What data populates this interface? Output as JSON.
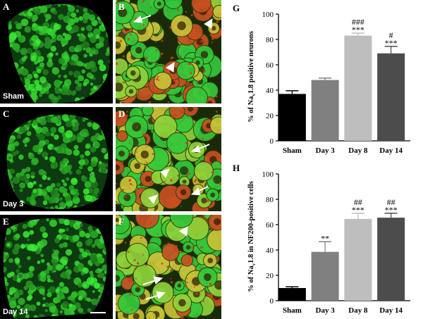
{
  "panels": {
    "A": {
      "label": "A",
      "condition": "Sham"
    },
    "B": {
      "label": "B"
    },
    "C": {
      "label": "C",
      "condition": "Day 3"
    },
    "D": {
      "label": "D"
    },
    "E": {
      "label": "E",
      "condition": "Day 14"
    },
    "F": {
      "label": "F"
    }
  },
  "colors": {
    "green_stain": "#34c83a",
    "red_stain": "#c85022",
    "yellow_overlap": "#c8c238",
    "bar_sham": "#000000",
    "bar_day3": "#808080",
    "bar_day8": "#bebebe",
    "bar_day14": "#4c4c4c"
  },
  "chart_data": [
    {
      "panel_label": "G",
      "type": "bar",
      "categories": [
        "Sham",
        "Day 3",
        "Day 8",
        "Day 14"
      ],
      "values": [
        37,
        48,
        83,
        69
      ],
      "errors": [
        2.5,
        1.5,
        2,
        5.5
      ],
      "annotations": [
        [
          "",
          ""
        ],
        [
          "",
          ""
        ],
        [
          "###",
          "***"
        ],
        [
          "#",
          "***"
        ]
      ],
      "ylabel": "% of Nav1.8 positive neurons",
      "ylabel_parts": [
        "% of Na",
        "v",
        "1.8 positive neurons"
      ],
      "ylim": [
        0,
        100
      ],
      "yticks": [
        0,
        20,
        40,
        60,
        80,
        100
      ],
      "grid": false
    },
    {
      "panel_label": "H",
      "type": "bar",
      "categories": [
        "Sham",
        "Day 3",
        "Day 8",
        "Day 14"
      ],
      "values": [
        10,
        38.5,
        64.5,
        65.5
      ],
      "errors": [
        1,
        8,
        4.5,
        3.5
      ],
      "annotations": [
        [
          "",
          ""
        ],
        [
          "",
          "**"
        ],
        [
          "##",
          "***"
        ],
        [
          "##",
          "***"
        ]
      ],
      "ylabel": "% of Nav1.8 in NF200-positive cells",
      "ylabel_parts": [
        "% of Na",
        "v",
        "1.8 in NF200-positive cells"
      ],
      "ylim": [
        0,
        100
      ],
      "yticks": [
        0,
        20,
        40,
        60,
        80,
        100
      ],
      "grid": false
    }
  ]
}
